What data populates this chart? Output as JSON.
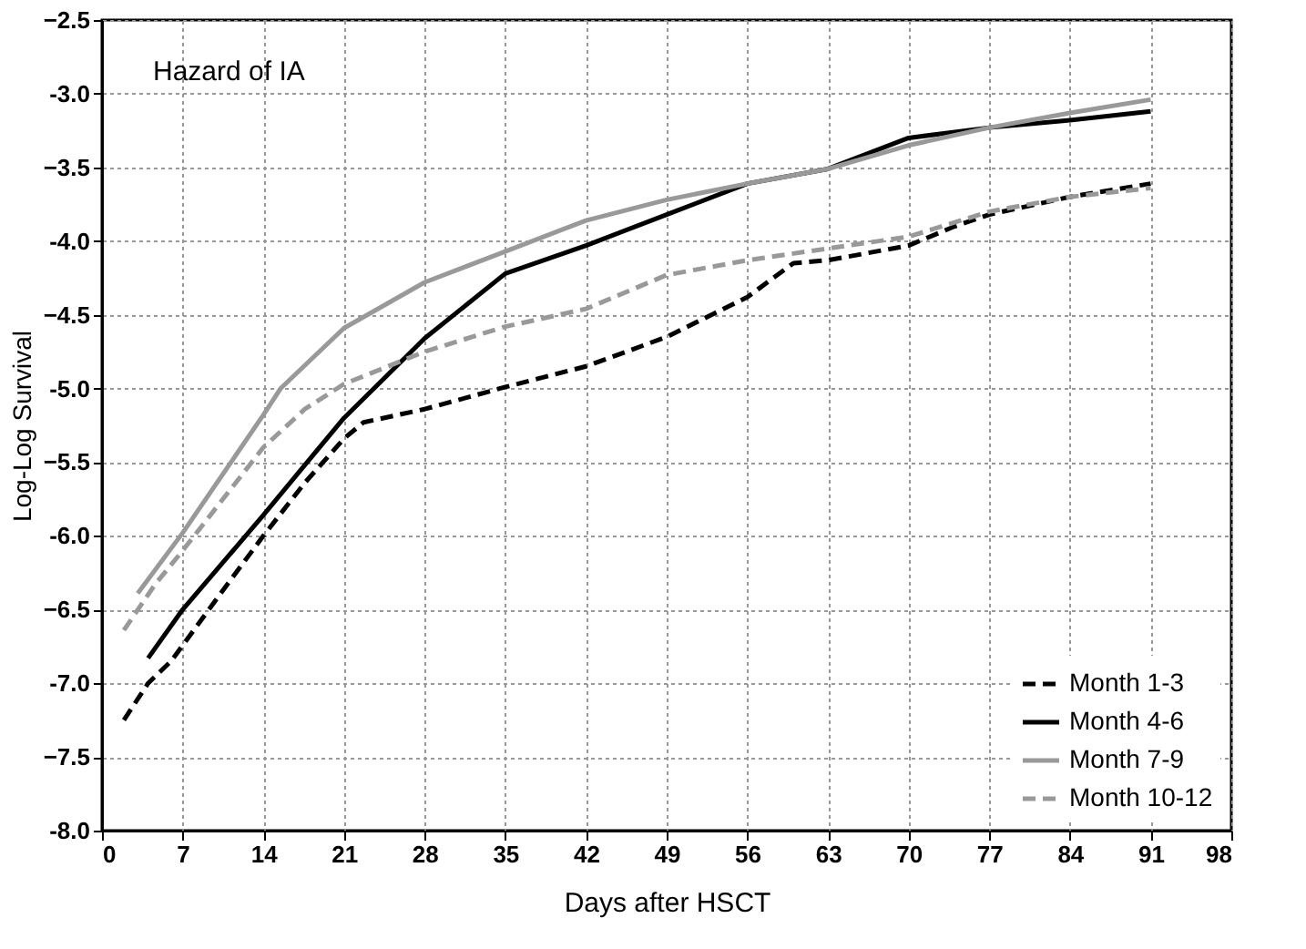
{
  "chart_data": {
    "type": "line",
    "xlabel": "Days after HSCT",
    "ylabel": "Log-Log Survival",
    "annotations": [
      "Hazard of IA"
    ],
    "xlim": [
      0,
      98
    ],
    "xticks": [
      0,
      7,
      14,
      21,
      28,
      35,
      42,
      49,
      56,
      63,
      70,
      77,
      84,
      91,
      98
    ],
    "ylim": [
      -8.0,
      -2.5
    ],
    "yticks": [
      {
        "value": -8,
        "label": "-8.0"
      },
      -7.5,
      {
        "value": -7,
        "label": "-7.0"
      },
      -6.5,
      {
        "value": -6,
        "label": "-6.0"
      },
      -5.5,
      {
        "value": -5,
        "label": "-5.0"
      },
      -4.5,
      {
        "value": -4,
        "label": "-4.0"
      },
      -3.5,
      {
        "value": -3,
        "label": "-3.0"
      },
      -2.5
    ],
    "grid": true,
    "legend": "bottom right",
    "marker": "none",
    "series": [
      {
        "name": "Month 1-3",
        "color": "#000000",
        "line_style": "dashed",
        "x": [
          1.9,
          4,
          6,
          10.3,
          14,
          17.6,
          21,
          22.7,
          28,
          35,
          42,
          49,
          56,
          60,
          63,
          70,
          74,
          77,
          84,
          91
        ],
        "values": [
          -7.25,
          -7.0,
          -6.85,
          -6.39,
          -6.0,
          -5.64,
          -5.34,
          -5.23,
          -5.14,
          -4.99,
          -4.85,
          -4.65,
          -4.38,
          -4.15,
          -4.13,
          -4.03,
          -3.9,
          -3.82,
          -3.7,
          -3.61
        ]
      },
      {
        "name": "Month 4-6",
        "color": "#000000",
        "line_style": "solid",
        "x": [
          4,
          7,
          14,
          17.6,
          21,
          28,
          35,
          42,
          49,
          56,
          63,
          70,
          77,
          84,
          91
        ],
        "values": [
          -6.83,
          -6.5,
          -5.86,
          -5.52,
          -5.2,
          -4.66,
          -4.22,
          -4.03,
          -3.82,
          -3.61,
          -3.51,
          -3.3,
          -3.23,
          -3.18,
          -3.12
        ]
      },
      {
        "name": "Month 7-9",
        "color": "#999999",
        "line_style": "solid",
        "x": [
          3.1,
          7,
          14,
          15.5,
          21,
          28,
          35,
          42,
          49,
          56,
          63,
          70,
          77,
          84,
          91
        ],
        "values": [
          -6.39,
          -5.98,
          -5.18,
          -5.0,
          -4.59,
          -4.28,
          -4.07,
          -3.86,
          -3.72,
          -3.61,
          -3.51,
          -3.35,
          -3.23,
          -3.13,
          -3.04
        ]
      },
      {
        "name": "Month 10-12",
        "color": "#999999",
        "line_style": "dashed",
        "x": [
          1.9,
          4.6,
          7,
          14,
          17.6,
          21,
          28,
          35,
          42,
          49,
          56,
          63,
          70,
          77,
          84,
          91
        ],
        "values": [
          -6.64,
          -6.33,
          -6.1,
          -5.4,
          -5.14,
          -4.97,
          -4.75,
          -4.58,
          -4.46,
          -4.23,
          -4.13,
          -4.05,
          -3.97,
          -3.8,
          -3.7,
          -3.64
        ]
      }
    ]
  }
}
